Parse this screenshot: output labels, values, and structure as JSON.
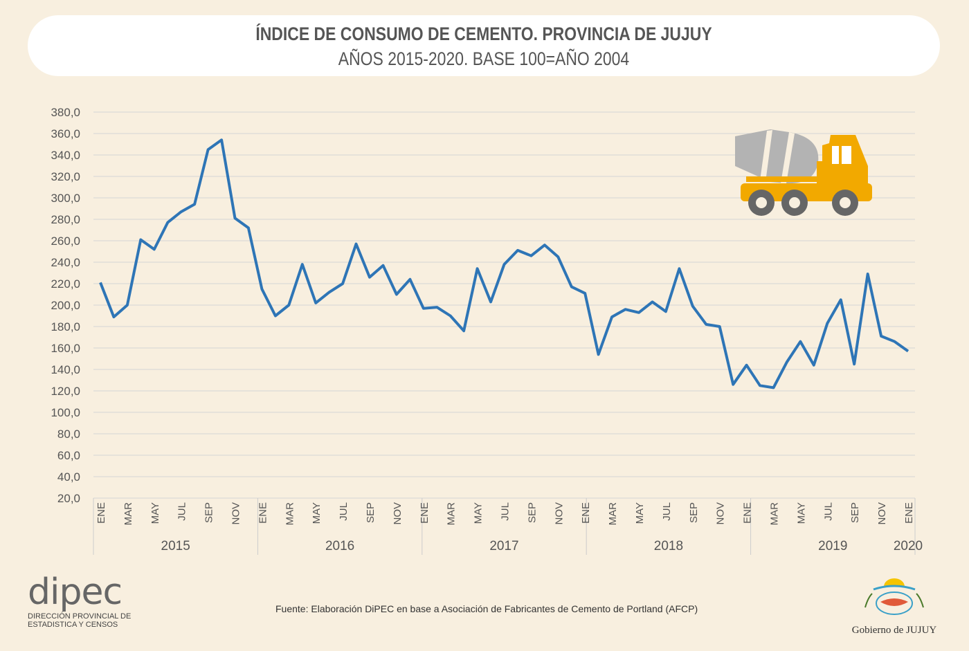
{
  "header": {
    "title": "ÍNDICE DE CONSUMO DE CEMENTO. PROVINCIA DE JUJUY",
    "subtitle": "AÑOS 2015-2020. BASE 100=AÑO 2004"
  },
  "chart_data": {
    "type": "line",
    "title": "ÍNDICE DE CONSUMO DE CEMENTO. PROVINCIA DE JUJUY",
    "subtitle": "AÑOS 2015-2020. BASE 100=AÑO 2004",
    "ylim": [
      20,
      380
    ],
    "y_ticks": [
      "20,0",
      "40,0",
      "60,0",
      "80,0",
      "100,0",
      "120,0",
      "140,0",
      "160,0",
      "180,0",
      "200,0",
      "220,0",
      "240,0",
      "260,0",
      "280,0",
      "300,0",
      "320,0",
      "340,0",
      "360,0",
      "380,0"
    ],
    "grid": true,
    "month_labels": [
      "ENE",
      "MAR",
      "MAY",
      "JUL",
      "SEP",
      "NOV"
    ],
    "years": [
      "2015",
      "2016",
      "2017",
      "2018",
      "2019",
      "2020"
    ],
    "series": [
      {
        "name": "Índice",
        "color": "#2e75b6",
        "values": [
          221,
          189,
          200,
          261,
          252,
          277,
          287,
          294,
          345,
          354,
          281,
          272,
          215,
          190,
          200,
          238,
          202,
          212,
          220,
          257,
          226,
          237,
          210,
          224,
          197,
          198,
          190,
          176,
          234,
          203,
          238,
          251,
          246,
          256,
          245,
          217,
          211,
          154,
          189,
          196,
          193,
          203,
          194,
          234,
          199,
          182,
          180,
          126,
          144,
          125,
          123,
          147,
          166,
          144,
          183,
          205,
          145,
          229,
          171,
          166,
          157
        ]
      }
    ]
  },
  "footer": {
    "source": "Fuente: Elaboración DiPEC en base a Asociación de Fabricantes de Cemento de Portland (AFCP)",
    "dipec_logo": "dipec",
    "dipec_line1": "DIRECCIÓN PROVINCIAL DE",
    "dipec_line2": "ESTADISTICA Y CENSOS",
    "gob_name": "Gobierno de JUJUY"
  }
}
